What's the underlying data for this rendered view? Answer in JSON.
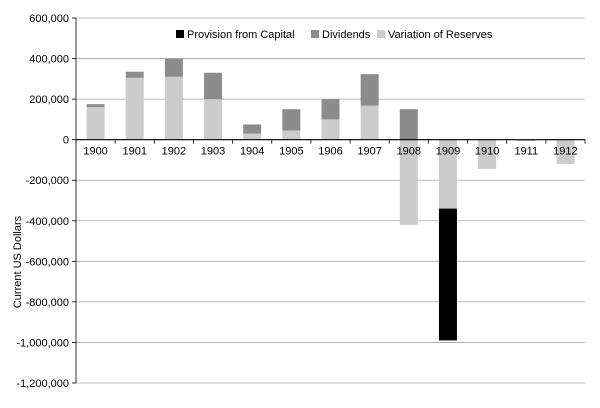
{
  "chart_data": {
    "type": "bar",
    "stacked": true,
    "categories": [
      "1900",
      "1901",
      "1902",
      "1903",
      "1904",
      "1905",
      "1906",
      "1907",
      "1908",
      "1909",
      "1910",
      "1911",
      "1912"
    ],
    "series": [
      {
        "name": "Provision from Capital",
        "color": "#000000",
        "values": [
          0,
          0,
          0,
          0,
          0,
          0,
          0,
          0,
          0,
          -650000,
          0,
          0,
          0
        ]
      },
      {
        "name": "Dividends",
        "color": "#8c8c8c",
        "values": [
          15000,
          30000,
          90000,
          130000,
          45000,
          105000,
          100000,
          155000,
          150000,
          0,
          0,
          -5000,
          0
        ]
      },
      {
        "name": "Variation of Reserves",
        "color": "#cccccc",
        "values": [
          160000,
          305000,
          310000,
          200000,
          30000,
          45000,
          100000,
          168000,
          -420000,
          -340000,
          -145000,
          0,
          -120000
        ]
      }
    ],
    "ylabel": "Current US Dollars",
    "xlabel": "",
    "title": "",
    "ylim": [
      -1200000,
      600000
    ],
    "yticks": [
      "600,000",
      "400,000",
      "200,000",
      "0",
      "-200,000",
      "-400,000",
      "-600,000",
      "-800,000",
      "-1,000,000",
      "-1,200,000"
    ],
    "yticks_values": [
      600000,
      400000,
      200000,
      0,
      -200000,
      -400000,
      -600000,
      -800000,
      -1000000,
      -1200000
    ],
    "grid": "horizontal",
    "legend": "top-center"
  }
}
